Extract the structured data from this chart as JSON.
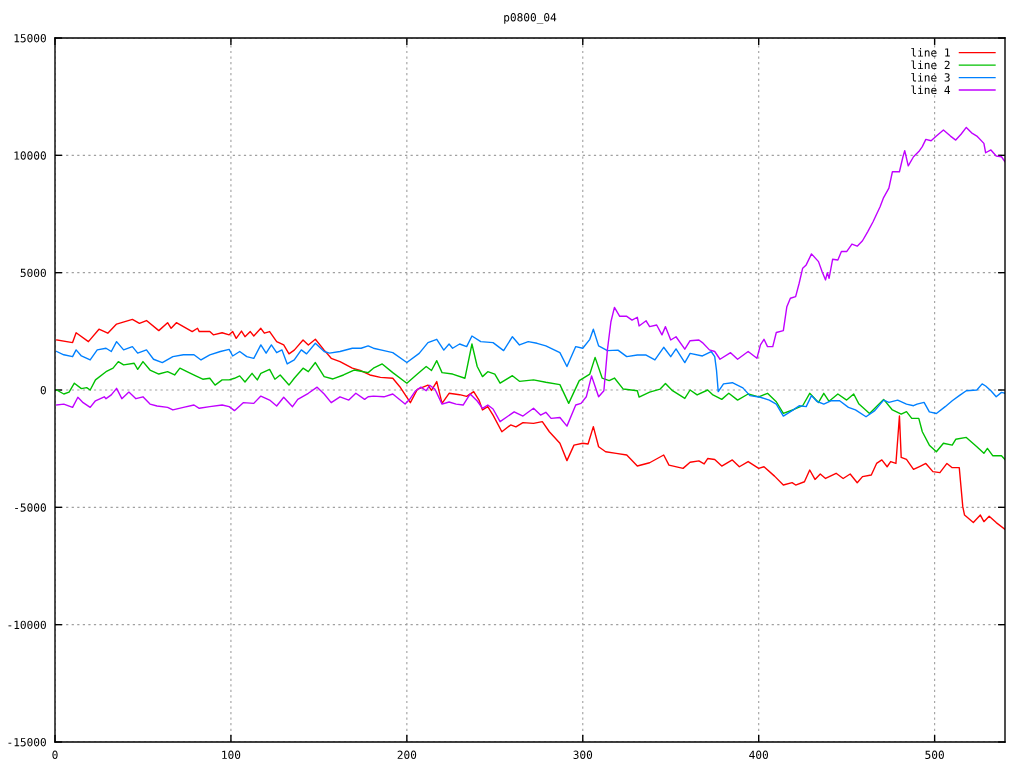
{
  "chart_data": {
    "type": "line",
    "title": "p0800_04",
    "xlim": [
      0,
      540
    ],
    "ylim": [
      -15000,
      15000
    ],
    "xticks": [
      0,
      100,
      200,
      300,
      400,
      500
    ],
    "yticks": [
      -15000,
      -10000,
      -5000,
      0,
      5000,
      10000,
      15000
    ],
    "grid": true,
    "legend": "top right",
    "series": [
      {
        "name": "line 1",
        "color": "#ff0000",
        "x": [
          1,
          10,
          12,
          19,
          25,
          30,
          35,
          44,
          48,
          52,
          59,
          64,
          66,
          69,
          78,
          81,
          82,
          88,
          90,
          95,
          99,
          101,
          103,
          106,
          108,
          111,
          113,
          117,
          119,
          122,
          126,
          130,
          133,
          136,
          141,
          144,
          148,
          153,
          157,
          162,
          169,
          174,
          179,
          185,
          192,
          196,
          202,
          206,
          212,
          214,
          217,
          220,
          224,
          230,
          234,
          238,
          241,
          243,
          246,
          249,
          254,
          259,
          262,
          266,
          272,
          277,
          281,
          287,
          291,
          295,
          300,
          303,
          306,
          309,
          313,
          319,
          325,
          331,
          338,
          346,
          349,
          357,
          361,
          366,
          369,
          371,
          375,
          379,
          385,
          389,
          394,
          400,
          403,
          409,
          414,
          419,
          421,
          426,
          429,
          432,
          435,
          438,
          444,
          448,
          452,
          456,
          459,
          464,
          467,
          470,
          473,
          475,
          478,
          480,
          481,
          484,
          488,
          492,
          495,
          499,
          503,
          507,
          510,
          514,
          516,
          517,
          522,
          526,
          528,
          531,
          535,
          540
        ],
        "values": [
          2130,
          2020,
          2440,
          2060,
          2590,
          2420,
          2810,
          3010,
          2840,
          2960,
          2530,
          2870,
          2630,
          2870,
          2490,
          2630,
          2490,
          2490,
          2350,
          2440,
          2350,
          2490,
          2200,
          2510,
          2270,
          2490,
          2300,
          2630,
          2420,
          2490,
          2060,
          1920,
          1540,
          1700,
          2130,
          1920,
          2160,
          1700,
          1350,
          1210,
          930,
          820,
          640,
          540,
          500,
          140,
          -540,
          30,
          210,
          -20,
          360,
          -570,
          -140,
          -200,
          -270,
          -70,
          -430,
          -850,
          -710,
          -1070,
          -1780,
          -1490,
          -1570,
          -1390,
          -1420,
          -1350,
          -1780,
          -2270,
          -3010,
          -2350,
          -2270,
          -2300,
          -1560,
          -2420,
          -2630,
          -2700,
          -2770,
          -3240,
          -3100,
          -2770,
          -3200,
          -3340,
          -3080,
          -3020,
          -3150,
          -2920,
          -2960,
          -3240,
          -2980,
          -3270,
          -3050,
          -3340,
          -3270,
          -3670,
          -4050,
          -3950,
          -4050,
          -3910,
          -3410,
          -3810,
          -3580,
          -3770,
          -3550,
          -3770,
          -3580,
          -3950,
          -3690,
          -3620,
          -3130,
          -2980,
          -3270,
          -3050,
          -3130,
          -1110,
          -2870,
          -2960,
          -3380,
          -3240,
          -3130,
          -3480,
          -3520,
          -3130,
          -3310,
          -3310,
          -4970,
          -5330,
          -5650,
          -5330,
          -5610,
          -5380,
          -5650,
          -5940
        ]
      },
      {
        "name": "line 2",
        "color": "#00c000",
        "x": [
          1,
          5,
          8,
          11,
          15,
          18,
          20,
          23,
          29,
          33,
          36,
          39,
          45,
          47,
          50,
          54,
          59,
          64,
          68,
          71,
          75,
          80,
          84,
          88,
          91,
          95,
          99,
          102,
          105,
          108,
          112,
          115,
          117,
          122,
          125,
          128,
          133,
          136,
          141,
          144,
          148,
          153,
          158,
          164,
          170,
          174,
          178,
          181,
          186,
          192,
          200,
          206,
          211,
          214,
          217,
          220,
          226,
          233,
          237,
          240,
          243,
          246,
          250,
          253,
          260,
          264,
          272,
          279,
          287,
          292,
          298,
          304,
          307,
          311,
          315,
          318,
          323,
          331,
          332,
          338,
          344,
          347,
          351,
          358,
          361,
          365,
          371,
          374,
          379,
          383,
          388,
          394,
          400,
          405,
          410,
          414,
          420,
          425,
          429,
          434,
          437,
          440,
          445,
          450,
          454,
          457,
          463,
          466,
          471,
          476,
          481,
          484,
          487,
          491,
          493,
          497,
          501,
          505,
          510,
          512,
          518,
          524,
          528,
          530,
          533,
          538,
          540
        ],
        "values": [
          0,
          -170,
          -90,
          290,
          60,
          100,
          0,
          430,
          780,
          930,
          1210,
          1070,
          1140,
          880,
          1210,
          850,
          680,
          780,
          640,
          930,
          780,
          600,
          460,
          500,
          210,
          430,
          430,
          500,
          600,
          340,
          710,
          430,
          710,
          880,
          460,
          640,
          210,
          500,
          930,
          780,
          1170,
          570,
          470,
          640,
          850,
          800,
          740,
          930,
          1110,
          740,
          290,
          680,
          1000,
          830,
          1250,
          740,
          680,
          500,
          1960,
          1000,
          570,
          780,
          680,
          290,
          610,
          370,
          430,
          330,
          230,
          -570,
          400,
          680,
          1390,
          510,
          400,
          510,
          40,
          -30,
          -300,
          -90,
          40,
          280,
          -30,
          -360,
          0,
          -210,
          0,
          -210,
          -400,
          -140,
          -430,
          -170,
          -290,
          -140,
          -500,
          -1000,
          -830,
          -670,
          -140,
          -530,
          -140,
          -480,
          -170,
          -430,
          -170,
          -600,
          -1000,
          -780,
          -400,
          -850,
          -1030,
          -920,
          -1210,
          -1210,
          -1780,
          -2350,
          -2630,
          -2270,
          -2350,
          -2100,
          -2020,
          -2420,
          -2700,
          -2490,
          -2800,
          -2800,
          -2960
        ]
      },
      {
        "name": "line 3",
        "color": "#0080ff",
        "x": [
          1,
          5,
          10,
          12,
          15,
          20,
          24,
          29,
          32,
          35,
          39,
          44,
          47,
          52,
          56,
          61,
          67,
          73,
          79,
          83,
          88,
          94,
          99,
          101,
          105,
          109,
          113,
          117,
          120,
          123,
          126,
          129,
          132,
          136,
          140,
          143,
          148,
          153,
          156,
          162,
          169,
          174,
          178,
          181,
          187,
          192,
          200,
          207,
          212,
          217,
          221,
          224,
          226,
          230,
          234,
          237,
          242,
          249,
          255,
          260,
          264,
          269,
          274,
          279,
          287,
          291,
          296,
          300,
          304,
          306,
          309,
          314,
          320,
          325,
          331,
          336,
          341,
          346,
          350,
          353,
          358,
          361,
          368,
          373,
          375,
          376,
          377,
          380,
          385,
          391,
          395,
          401,
          406,
          410,
          414,
          419,
          423,
          427,
          430,
          433,
          437,
          441,
          446,
          451,
          455,
          461,
          466,
          471,
          474,
          479,
          484,
          488,
          490,
          494,
          497,
          501,
          506,
          510,
          514,
          518,
          524,
          527,
          529,
          532,
          535,
          538,
          540
        ],
        "values": [
          1640,
          1500,
          1420,
          1710,
          1450,
          1280,
          1710,
          1780,
          1640,
          2060,
          1710,
          1850,
          1570,
          1710,
          1310,
          1170,
          1420,
          1500,
          1500,
          1280,
          1500,
          1640,
          1730,
          1450,
          1640,
          1420,
          1350,
          1920,
          1570,
          1920,
          1590,
          1710,
          1110,
          1280,
          1710,
          1540,
          1990,
          1640,
          1570,
          1640,
          1780,
          1780,
          1880,
          1780,
          1680,
          1590,
          1170,
          1560,
          2020,
          2160,
          1700,
          1960,
          1780,
          1960,
          1850,
          2300,
          2060,
          2020,
          1680,
          2270,
          1920,
          2060,
          1990,
          1880,
          1590,
          1000,
          1850,
          1780,
          2160,
          2590,
          1880,
          1680,
          1700,
          1420,
          1490,
          1490,
          1280,
          1820,
          1420,
          1750,
          1170,
          1560,
          1450,
          1640,
          1420,
          850,
          -70,
          260,
          310,
          90,
          -240,
          -310,
          -430,
          -600,
          -1110,
          -880,
          -670,
          -710,
          -240,
          -480,
          -600,
          -460,
          -460,
          -740,
          -850,
          -1140,
          -880,
          -430,
          -530,
          -430,
          -600,
          -670,
          -600,
          -530,
          -930,
          -1000,
          -710,
          -460,
          -240,
          -30,
          0,
          260,
          170,
          -30,
          -290,
          -100,
          -140
        ]
      },
      {
        "name": "line 4",
        "color": "#c000ff",
        "x": [
          1,
          5,
          10,
          13,
          16,
          20,
          23,
          28,
          29,
          32,
          35,
          38,
          42,
          46,
          50,
          54,
          58,
          64,
          67,
          73,
          79,
          82,
          88,
          95,
          99,
          102,
          107,
          113,
          117,
          122,
          126,
          130,
          135,
          138,
          144,
          149,
          153,
          157,
          162,
          167,
          171,
          176,
          178,
          181,
          187,
          192,
          199,
          202,
          205,
          208,
          211,
          213,
          216,
          220,
          224,
          228,
          232,
          236,
          240,
          243,
          246,
          249,
          253,
          257,
          261,
          266,
          272,
          276,
          279,
          282,
          287,
          291,
          296,
          299,
          302,
          305,
          309,
          312,
          314,
          316,
          318,
          321,
          325,
          328,
          331,
          332,
          336,
          338,
          342,
          345,
          347,
          350,
          353,
          358,
          361,
          366,
          368,
          372,
          375,
          378,
          384,
          388,
          394,
          399,
          401,
          403,
          405,
          408,
          410,
          414,
          416,
          418,
          421,
          423,
          425,
          427,
          430,
          434,
          436,
          438,
          439,
          440,
          442,
          445,
          447,
          450,
          453,
          456,
          459,
          462,
          465,
          469,
          471,
          474,
          476,
          480,
          482,
          483,
          485,
          488,
          491,
          493,
          495,
          498,
          501,
          505,
          509,
          512,
          515,
          518,
          521,
          524,
          528,
          529,
          532,
          535,
          538,
          540
        ],
        "values": [
          -640,
          -600,
          -740,
          -310,
          -540,
          -740,
          -460,
          -290,
          -370,
          -210,
          70,
          -370,
          -90,
          -370,
          -290,
          -600,
          -680,
          -740,
          -850,
          -740,
          -640,
          -780,
          -710,
          -640,
          -710,
          -880,
          -540,
          -570,
          -260,
          -430,
          -680,
          -310,
          -710,
          -400,
          -140,
          120,
          -170,
          -540,
          -290,
          -430,
          -140,
          -400,
          -290,
          -260,
          -290,
          -170,
          -600,
          -360,
          -30,
          120,
          -30,
          200,
          30,
          -600,
          -510,
          -600,
          -640,
          -170,
          -470,
          -780,
          -640,
          -810,
          -1350,
          -1140,
          -930,
          -1110,
          -780,
          -1070,
          -950,
          -1210,
          -1170,
          -1540,
          -640,
          -570,
          -290,
          600,
          -290,
          -30,
          1710,
          2910,
          3520,
          3140,
          3140,
          2980,
          3100,
          2730,
          2950,
          2700,
          2770,
          2350,
          2700,
          2130,
          2270,
          1740,
          2100,
          2130,
          2020,
          1710,
          1640,
          1310,
          1590,
          1310,
          1640,
          1350,
          1920,
          2160,
          1850,
          1850,
          2450,
          2530,
          3550,
          3910,
          3980,
          4550,
          5190,
          5330,
          5800,
          5470,
          5050,
          4690,
          5000,
          4760,
          5570,
          5540,
          5900,
          5900,
          6220,
          6130,
          6360,
          6750,
          7170,
          7810,
          8200,
          8600,
          9300,
          9300,
          9940,
          10200,
          9550,
          9940,
          10160,
          10370,
          10680,
          10620,
          10820,
          11080,
          10820,
          10650,
          10900,
          11190,
          10960,
          10820,
          10510,
          10110,
          10230,
          9970,
          9940,
          9730
        ]
      }
    ]
  }
}
